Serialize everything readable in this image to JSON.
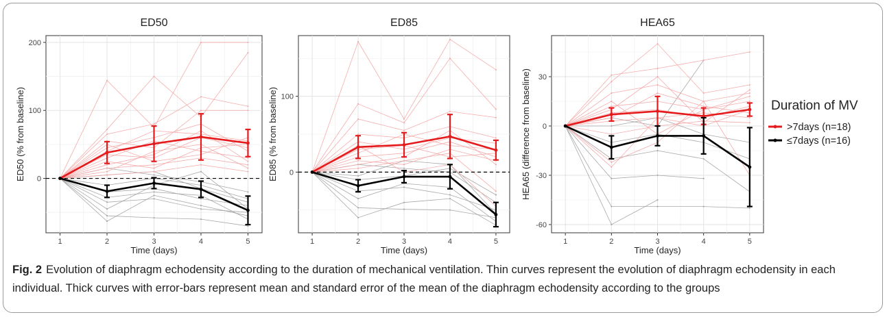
{
  "caption": {
    "label": "Fig. 2",
    "text": "Evolution of diaphragm echodensity according to the duration of mechanical ventilation. Thin curves represent the evolution of diaphragm echodensity in each individual. Thick curves with error-bars represent mean and standard error of the mean of the diaphragm echodensity according to the groups"
  },
  "legend": {
    "title": "Duration of MV",
    "items": [
      {
        "label": ">7days (n=18)",
        "color": "#e41a1c"
      },
      {
        "label": "≤7days (n=16)",
        "color": "#000000"
      }
    ]
  },
  "colors": {
    "long": "#e41a1c",
    "short": "#000000",
    "thin_long": "#f4a3a3",
    "thin_short": "#9e9e9e"
  },
  "chart_data": [
    {
      "type": "line",
      "title": "ED50",
      "xlabel": "Time (days)",
      "ylabel": "ED50 (% from baseline)",
      "x": [
        1,
        2,
        3,
        4,
        5
      ],
      "xlim": [
        0.7,
        5.3
      ],
      "ylim": [
        -80,
        210
      ],
      "yticks": [
        0,
        100,
        200
      ],
      "reference_line": 0,
      "grid": true,
      "series": [
        {
          "name": ">7days (n=18)",
          "values": [
            0,
            38,
            51,
            61,
            52
          ],
          "err": [
            16,
            26,
            34,
            20
          ],
          "group": "long"
        },
        {
          "name": "≤7days (n=16)",
          "values": [
            0,
            -19,
            -7,
            -16,
            -47
          ],
          "err": [
            9,
            8,
            12,
            21
          ],
          "group": "short"
        }
      ],
      "individual": {
        "long": [
          [
            0,
            144,
            75,
            200,
            200
          ],
          [
            0,
            72,
            150,
            90,
            185
          ],
          [
            0,
            65,
            80,
            120,
            106
          ],
          [
            0,
            55,
            45,
            100,
            100
          ],
          [
            0,
            45,
            60,
            80,
            40
          ],
          [
            0,
            40,
            70,
            65,
            55
          ],
          [
            0,
            35,
            30,
            60,
            45
          ],
          [
            0,
            30,
            55,
            40,
            30
          ],
          [
            0,
            25,
            15,
            45,
            50
          ],
          [
            0,
            20,
            35,
            70,
            25
          ],
          [
            0,
            15,
            20,
            30,
            20
          ],
          [
            0,
            10,
            40,
            50,
            15
          ],
          [
            0,
            5,
            10,
            20,
            10
          ],
          [
            0,
            50,
            25,
            35,
            60
          ]
        ],
        "short": [
          [
            0,
            -10,
            0,
            -10,
            -30
          ],
          [
            0,
            -20,
            -15,
            -30,
            -40
          ],
          [
            0,
            -35,
            -30,
            -45,
            -50
          ],
          [
            0,
            -55,
            -58,
            -60,
            -70
          ],
          [
            0,
            -63,
            -25,
            -40,
            -55
          ],
          [
            0,
            15,
            5,
            -5,
            -20
          ],
          [
            0,
            5,
            10,
            -15,
            -35
          ],
          [
            0,
            -28,
            -20,
            -25,
            -60
          ],
          [
            0,
            -45,
            -10,
            10,
            -45
          ]
        ]
      }
    },
    {
      "type": "line",
      "title": "ED85",
      "xlabel": "Time (days)",
      "ylabel": "ED85 (% from baseline)",
      "x": [
        1,
        2,
        3,
        4,
        5
      ],
      "xlim": [
        0.7,
        5.3
      ],
      "ylim": [
        -80,
        180
      ],
      "yticks": [
        0,
        100
      ],
      "reference_line": 0,
      "grid": true,
      "series": [
        {
          "name": ">7days (n=18)",
          "values": [
            0,
            33,
            36,
            47,
            29
          ],
          "err": [
            15,
            16,
            29,
            13
          ],
          "group": "long"
        },
        {
          "name": "≤7days (n=16)",
          "values": [
            0,
            -18,
            -6,
            -6,
            -56
          ],
          "err": [
            8,
            8,
            16,
            16
          ],
          "group": "short"
        }
      ],
      "individual": {
        "long": [
          [
            0,
            172,
            70,
            175,
            135
          ],
          [
            0,
            90,
            65,
            150,
            83
          ],
          [
            0,
            70,
            55,
            80,
            72
          ],
          [
            0,
            50,
            45,
            60,
            45
          ],
          [
            0,
            40,
            30,
            45,
            38
          ],
          [
            0,
            30,
            35,
            20,
            25
          ],
          [
            0,
            20,
            25,
            40,
            20
          ],
          [
            0,
            15,
            10,
            30,
            15
          ],
          [
            0,
            10,
            20,
            55,
            10
          ],
          [
            0,
            25,
            50,
            35,
            30
          ],
          [
            0,
            5,
            15,
            25,
            -25
          ],
          [
            0,
            35,
            0,
            10,
            -45
          ]
        ],
        "short": [
          [
            0,
            -10,
            -5,
            5,
            -30
          ],
          [
            0,
            -25,
            -20,
            -30,
            -50
          ],
          [
            0,
            -47,
            -49,
            -50,
            -60
          ],
          [
            0,
            -60,
            -40,
            -35,
            -70
          ],
          [
            0,
            10,
            5,
            0,
            -40
          ],
          [
            0,
            -35,
            -15,
            -20,
            -65
          ],
          [
            0,
            -5,
            15,
            10,
            -55
          ]
        ]
      }
    },
    {
      "type": "line",
      "title": "HEA65",
      "xlabel": "Time (days)",
      "ylabel": "HEA65 (difference from baseline)",
      "x": [
        1,
        2,
        3,
        4,
        5
      ],
      "xlim": [
        0.7,
        5.3
      ],
      "ylim": [
        -65,
        55
      ],
      "yticks": [
        30,
        0,
        -30,
        -60
      ],
      "reference_line": null,
      "grid": true,
      "series": [
        {
          "name": ">7days (n=18)",
          "values": [
            0,
            7,
            9,
            6,
            10
          ],
          "err": [
            4,
            9,
            5,
            4
          ],
          "group": "long"
        },
        {
          "name": "≤7days (n=16)",
          "values": [
            0,
            -13,
            -6,
            -6,
            -25
          ],
          "err": [
            7,
            6,
            11,
            24
          ],
          "group": "short"
        }
      ],
      "individual": {
        "long": [
          [
            0,
            31,
            35,
            40,
            45
          ],
          [
            0,
            27,
            50,
            20,
            25
          ],
          [
            0,
            20,
            25,
            15,
            20
          ],
          [
            0,
            12,
            15,
            10,
            18
          ],
          [
            0,
            8,
            10,
            5,
            12
          ],
          [
            0,
            5,
            20,
            12,
            8
          ],
          [
            0,
            3,
            5,
            8,
            5
          ],
          [
            0,
            -5,
            0,
            3,
            2
          ],
          [
            0,
            15,
            -5,
            10,
            15
          ],
          [
            0,
            10,
            30,
            2,
            22
          ],
          [
            0,
            -22,
            -10,
            15,
            -30
          ],
          [
            0,
            -25,
            5,
            0,
            10
          ]
        ],
        "short": [
          [
            0,
            -32,
            -30,
            -32,
            null
          ],
          [
            0,
            -49,
            -49,
            -49,
            -50
          ],
          [
            0,
            -60,
            -45,
            null,
            null
          ],
          [
            0,
            5,
            0,
            40,
            null
          ],
          [
            0,
            -10,
            -5,
            -10,
            -20
          ],
          [
            0,
            0,
            5,
            -5,
            -10
          ],
          [
            0,
            -20,
            -15,
            -20,
            -40
          ]
        ]
      }
    }
  ]
}
